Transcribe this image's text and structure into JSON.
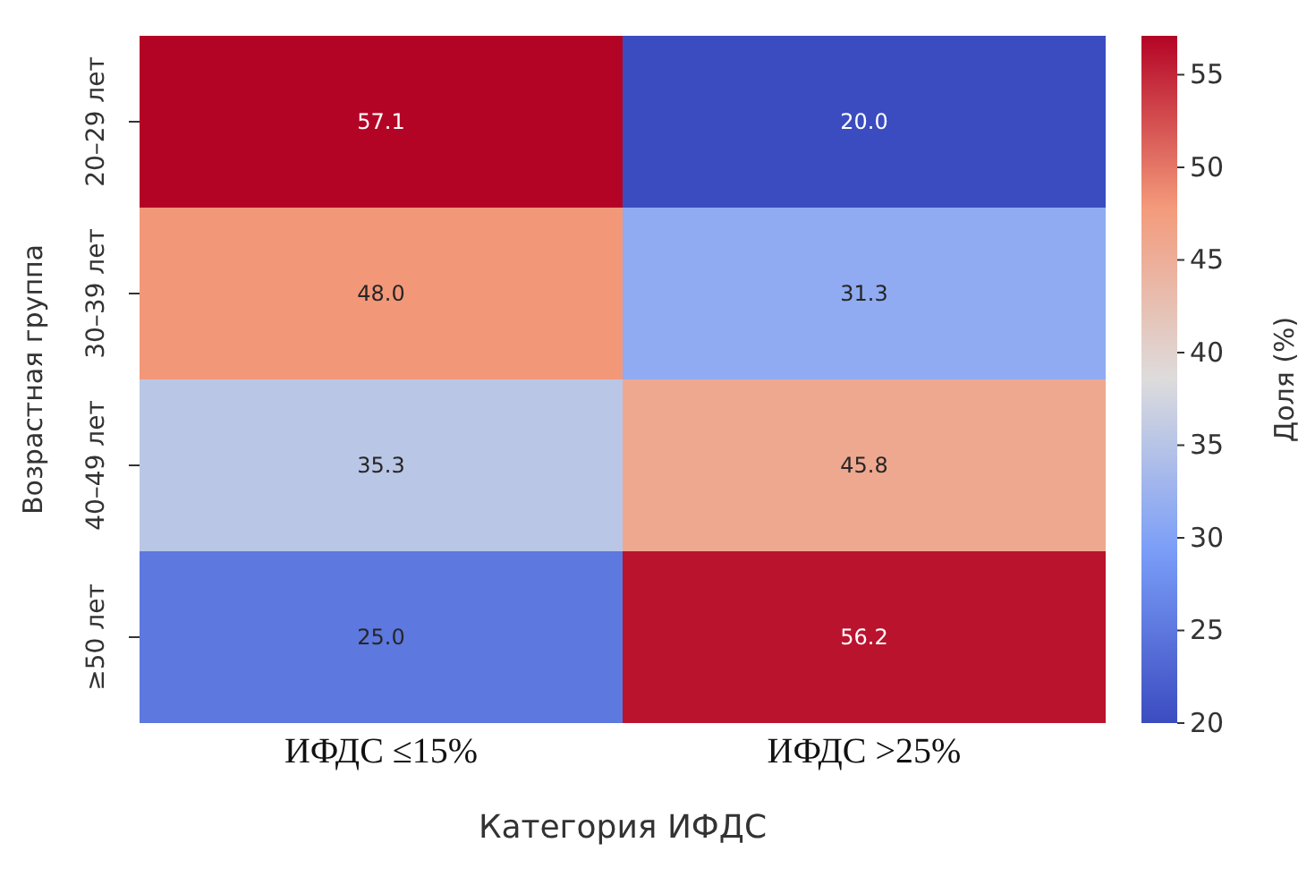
{
  "chart_data": {
    "type": "heatmap",
    "xlabel": "Категория ИФДС",
    "ylabel": "Возрастная группа",
    "clabel": "Доля (%)",
    "categories": [
      "ИФДС ≤15%",
      "ИФДС >25%"
    ],
    "y_categories": [
      "20–29 лет",
      "30–39 лет",
      "40–49 лет",
      "≥50 лет"
    ],
    "cells": [
      [
        57.1,
        20.0
      ],
      [
        48.0,
        31.3
      ],
      [
        35.3,
        45.8
      ],
      [
        25.0,
        56.2
      ]
    ],
    "cell_labels": [
      [
        "57.1",
        "20.0"
      ],
      [
        "48.0",
        "31.3"
      ],
      [
        "35.3",
        "45.8"
      ],
      [
        "25.0",
        "56.2"
      ]
    ],
    "clim": [
      20,
      57.1
    ],
    "cticks": [
      20,
      25,
      30,
      35,
      40,
      45,
      50,
      55
    ]
  }
}
